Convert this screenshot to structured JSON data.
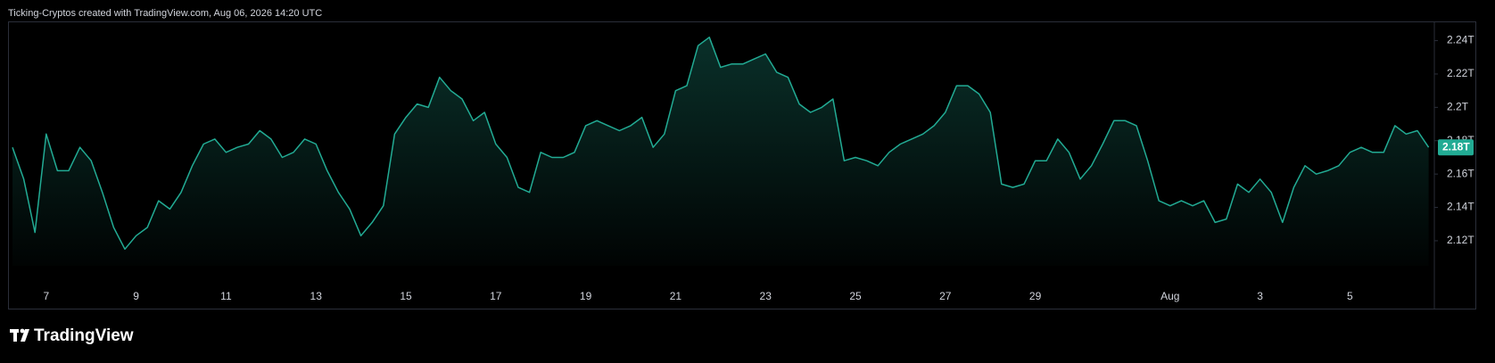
{
  "header": "Ticking-Cryptos created with TradingView.com, Aug 06, 2026 14:20 UTC",
  "logo": "TradingView",
  "chart_data": {
    "type": "area",
    "categories": [
      null,
      null,
      null,
      "7",
      null,
      null,
      null,
      null,
      null,
      null,
      null,
      "9",
      null,
      null,
      null,
      null,
      null,
      null,
      null,
      "11",
      null,
      null,
      null,
      null,
      null,
      null,
      null,
      "13",
      null,
      null,
      null,
      null,
      null,
      null,
      null,
      "15",
      null,
      null,
      null,
      null,
      null,
      null,
      null,
      "17",
      null,
      null,
      null,
      null,
      null,
      null,
      null,
      "19",
      null,
      null,
      null,
      null,
      null,
      null,
      null,
      "21",
      null,
      null,
      null,
      null,
      null,
      null,
      null,
      "23",
      null,
      null,
      null,
      null,
      null,
      null,
      null,
      "25",
      null,
      null,
      null,
      null,
      null,
      null,
      null,
      "27",
      null,
      null,
      null,
      null,
      null,
      null,
      null,
      "29",
      null,
      null,
      null,
      null,
      null,
      null,
      null,
      null,
      null,
      null,
      null,
      "Aug",
      null,
      null,
      null,
      null,
      null,
      null,
      null,
      "3",
      null,
      null,
      null,
      null,
      null,
      null,
      null,
      "5",
      null,
      null,
      null,
      null,
      null,
      null,
      null
    ],
    "values": [
      2.176,
      2.157,
      2.125,
      2.184,
      2.162,
      2.162,
      2.176,
      2.168,
      2.149,
      2.128,
      2.115,
      2.123,
      2.128,
      2.144,
      2.139,
      2.149,
      2.165,
      2.178,
      2.181,
      2.173,
      2.176,
      2.178,
      2.186,
      2.181,
      2.17,
      2.173,
      2.181,
      2.178,
      2.162,
      2.149,
      2.139,
      2.123,
      2.131,
      2.141,
      2.184,
      2.194,
      2.202,
      2.2,
      2.218,
      2.21,
      2.205,
      2.192,
      2.197,
      2.178,
      2.17,
      2.152,
      2.149,
      2.173,
      2.17,
      2.17,
      2.173,
      2.189,
      2.192,
      2.189,
      2.186,
      2.189,
      2.194,
      2.176,
      2.184,
      2.21,
      2.213,
      2.237,
      2.242,
      2.224,
      2.226,
      2.226,
      2.229,
      2.232,
      2.221,
      2.218,
      2.202,
      2.197,
      2.2,
      2.205,
      2.168,
      2.17,
      2.168,
      2.165,
      2.173,
      2.178,
      2.181,
      2.184,
      2.189,
      2.197,
      2.213,
      2.213,
      2.208,
      2.197,
      2.154,
      2.152,
      2.154,
      2.168,
      2.168,
      2.181,
      2.173,
      2.157,
      2.165,
      2.178,
      2.192,
      2.192,
      2.189,
      2.168,
      2.144,
      2.141,
      2.144,
      2.141,
      2.144,
      2.131,
      2.133,
      2.154,
      2.149,
      2.157,
      2.149,
      2.131,
      2.152,
      2.165,
      2.16,
      2.162,
      2.165,
      2.173,
      2.176,
      2.173,
      2.173,
      2.189,
      2.184,
      2.186,
      2.176
    ],
    "color": "#22ab94",
    "ylim": [
      2.105,
      2.251
    ],
    "yticks": [
      {
        "value": 2.12,
        "label": "2.12T"
      },
      {
        "value": 2.14,
        "label": "2.14T"
      },
      {
        "value": 2.16,
        "label": "2.16T"
      },
      {
        "value": 2.18,
        "label": "2.18T"
      },
      {
        "value": 2.2,
        "label": "2.2T"
      },
      {
        "value": 2.22,
        "label": "2.22T"
      },
      {
        "value": 2.24,
        "label": "2.24T"
      }
    ],
    "last_value": {
      "value": 2.176,
      "label": "2.18T"
    }
  }
}
